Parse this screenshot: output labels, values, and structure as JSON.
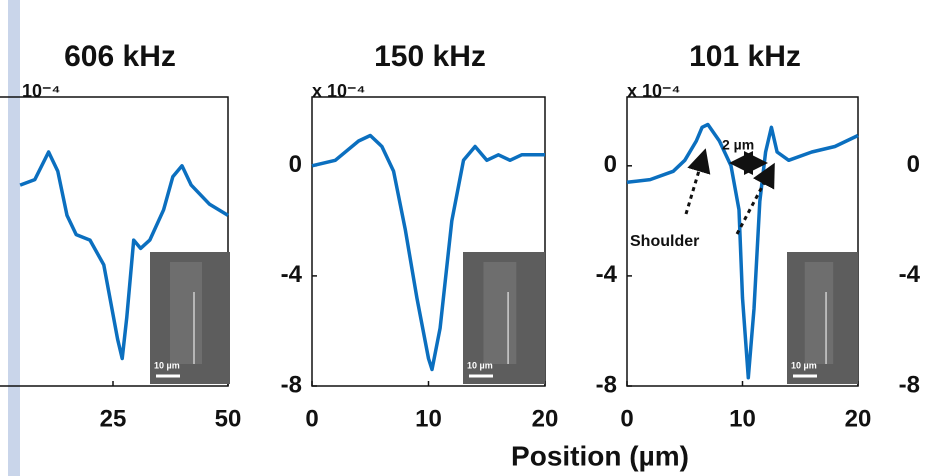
{
  "chart_data": [
    {
      "type": "line",
      "title": "606 kHz",
      "ylabel": "10⁻⁴",
      "color": "#0b6fbf",
      "x": [
        4.8,
        8,
        11,
        13,
        15,
        17,
        20,
        23,
        26,
        27,
        28,
        29.5,
        31,
        33,
        36,
        38,
        40,
        42,
        46,
        50
      ],
      "values": [
        -0.7,
        -0.5,
        0.5,
        -0.2,
        -1.8,
        -2.5,
        -2.7,
        -3.6,
        -6.3,
        -7.0,
        -5.5,
        -2.7,
        -3.0,
        -2.7,
        -1.6,
        -0.4,
        0,
        -0.7,
        -1.4,
        -1.8
      ],
      "xlim": [
        0,
        50
      ],
      "xticks": [
        25,
        50
      ],
      "ylim": [
        -8,
        2.5
      ],
      "inset_label": "10 µm"
    },
    {
      "type": "line",
      "title": "150 kHz",
      "ylabel": "x 10⁻⁴",
      "xlabel": "Position (µm)",
      "color": "#0b6fbf",
      "x": [
        0,
        2,
        4,
        5,
        6,
        7,
        8,
        9,
        10,
        10.3,
        11,
        12,
        13,
        14,
        15,
        16,
        17,
        18,
        20
      ],
      "values": [
        0,
        0.2,
        0.9,
        1.1,
        0.7,
        -0.2,
        -2.3,
        -4.8,
        -7.0,
        -7.4,
        -5.9,
        -2.0,
        0.2,
        0.7,
        0.2,
        0.4,
        0.2,
        0.4,
        0.4
      ],
      "xlim": [
        0,
        20
      ],
      "xticks": [
        0,
        10,
        20
      ],
      "ylim": [
        -8,
        2.5
      ],
      "yticks": [
        0,
        -4,
        -8
      ],
      "inset_label": "10 µm"
    },
    {
      "type": "line",
      "title": "101 kHz",
      "ylabel": "x 10⁻⁴",
      "color": "#0b6fbf",
      "x": [
        0,
        2,
        4,
        5,
        6,
        6.5,
        7,
        8,
        9,
        9.7,
        10,
        10.5,
        11,
        11.5,
        12,
        12.5,
        13,
        14,
        16,
        18,
        20
      ],
      "values": [
        -0.6,
        -0.5,
        -0.2,
        0.2,
        0.9,
        1.4,
        1.5,
        0.9,
        0,
        -1.6,
        -4.8,
        -7.7,
        -5.2,
        -1.3,
        0.5,
        1.4,
        0.5,
        0.2,
        0.5,
        0.7,
        1.1
      ],
      "xlim": [
        0,
        20
      ],
      "xticks": [
        0,
        10,
        20
      ],
      "ylim": [
        -8,
        2.5
      ],
      "yticks": [
        0,
        -4,
        -8
      ],
      "inset_label": "10 µm",
      "annotations": [
        "2 µm",
        "Shoulder"
      ]
    },
    {
      "type": "line",
      "ylim": [
        -8,
        2.5
      ],
      "yticks": [
        0,
        -4,
        -8
      ]
    }
  ]
}
